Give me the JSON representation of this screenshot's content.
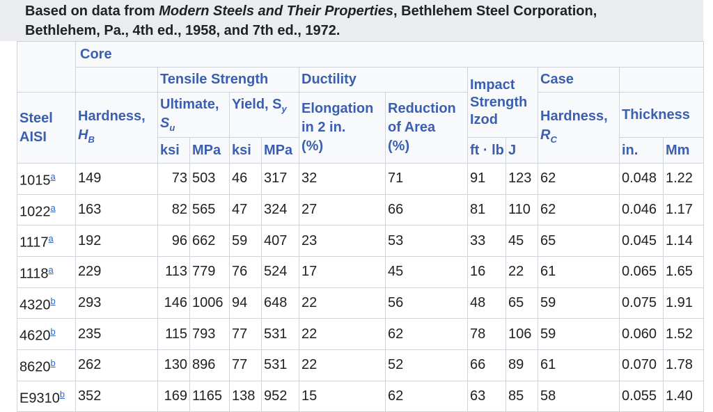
{
  "caption": {
    "line1_prefix": "Based on data from ",
    "line1_title": "Modern Steels and Their Properties",
    "line1_suffix": ", Bethlehem Steel Corporation,",
    "line2": "Bethlehem, Pa., 4th ed., 1958, and 7th ed., 1972."
  },
  "headers": {
    "core": "Core",
    "tensile_strength": "Tensile Strength",
    "ductility": "Ductility",
    "impact": "Impact",
    "strength_izod": "Strength Izod",
    "case": "Case",
    "steel": "Steel",
    "aisi": "AISI",
    "hardness": "Hardness,",
    "hb": "H",
    "hb_sub": "B",
    "ultimate": "Ultimate,",
    "su": "S",
    "su_sub": "u",
    "yield": "Yield, S",
    "yield_sub": "y",
    "elongation": "Elongation",
    "in2": "in 2 in.",
    "pct1": "(%)",
    "reduction": "Reduction",
    "of_area": "of Area",
    "pct2": "(%)",
    "case_hardness": "Hardness,",
    "rc": "R",
    "rc_sub": "C",
    "thickness": "Thickness",
    "ksi1": "ksi",
    "mpa1": "MPa",
    "ksi2": "ksi",
    "mpa2": "MPa",
    "ftlb": "ft · lb",
    "j": "J",
    "in": "in.",
    "mm": "Mm"
  },
  "rows": [
    {
      "steel": "1015",
      "note": "a",
      "hb": "149",
      "su_ksi": "73",
      "su_mpa": "503",
      "sy_ksi": "46",
      "sy_mpa": "317",
      "elong": "32",
      "red": "71",
      "ftlb": "91",
      "j": "123",
      "rc": "62",
      "in": "0.048",
      "mm": "1.22"
    },
    {
      "steel": "1022",
      "note": "a",
      "hb": "163",
      "su_ksi": "82",
      "su_mpa": "565",
      "sy_ksi": "47",
      "sy_mpa": "324",
      "elong": "27",
      "red": "66",
      "ftlb": "81",
      "j": "110",
      "rc": "62",
      "in": "0.046",
      "mm": "1.17"
    },
    {
      "steel": "1117",
      "note": "a",
      "hb": "192",
      "su_ksi": "96",
      "su_mpa": "662",
      "sy_ksi": "59",
      "sy_mpa": "407",
      "elong": "23",
      "red": "53",
      "ftlb": "33",
      "j": "45",
      "rc": "65",
      "in": "0.045",
      "mm": "1.14"
    },
    {
      "steel": "1118",
      "note": "a",
      "hb": "229",
      "su_ksi": "113",
      "su_mpa": "779",
      "sy_ksi": "76",
      "sy_mpa": "524",
      "elong": "17",
      "red": "45",
      "ftlb": "16",
      "j": "22",
      "rc": "61",
      "in": "0.065",
      "mm": "1.65"
    },
    {
      "steel": "4320",
      "note": "b",
      "hb": "293",
      "su_ksi": "146",
      "su_mpa": "1006",
      "sy_ksi": "94",
      "sy_mpa": "648",
      "elong": "22",
      "red": "56",
      "ftlb": "48",
      "j": "65",
      "rc": "59",
      "in": "0.075",
      "mm": "1.91"
    },
    {
      "steel": "4620",
      "note": "b",
      "hb": "235",
      "su_ksi": "115",
      "su_mpa": "793",
      "sy_ksi": "77",
      "sy_mpa": "531",
      "elong": "22",
      "red": "62",
      "ftlb": "78",
      "j": "106",
      "rc": "59",
      "in": "0.060",
      "mm": "1.52"
    },
    {
      "steel": "8620",
      "note": "b",
      "hb": "262",
      "su_ksi": "130",
      "su_mpa": "896",
      "sy_ksi": "77",
      "sy_mpa": "531",
      "elong": "22",
      "red": "52",
      "ftlb": "66",
      "j": "89",
      "rc": "61",
      "in": "0.070",
      "mm": "1.78"
    },
    {
      "steel": "E9310",
      "note": "b",
      "hb": "352",
      "su_ksi": "169",
      "su_mpa": "1165",
      "sy_ksi": "138",
      "sy_mpa": "952",
      "elong": "15",
      "red": "62",
      "ftlb": "63",
      "j": "85",
      "rc": "58",
      "in": "0.055",
      "mm": "1.40"
    }
  ]
}
